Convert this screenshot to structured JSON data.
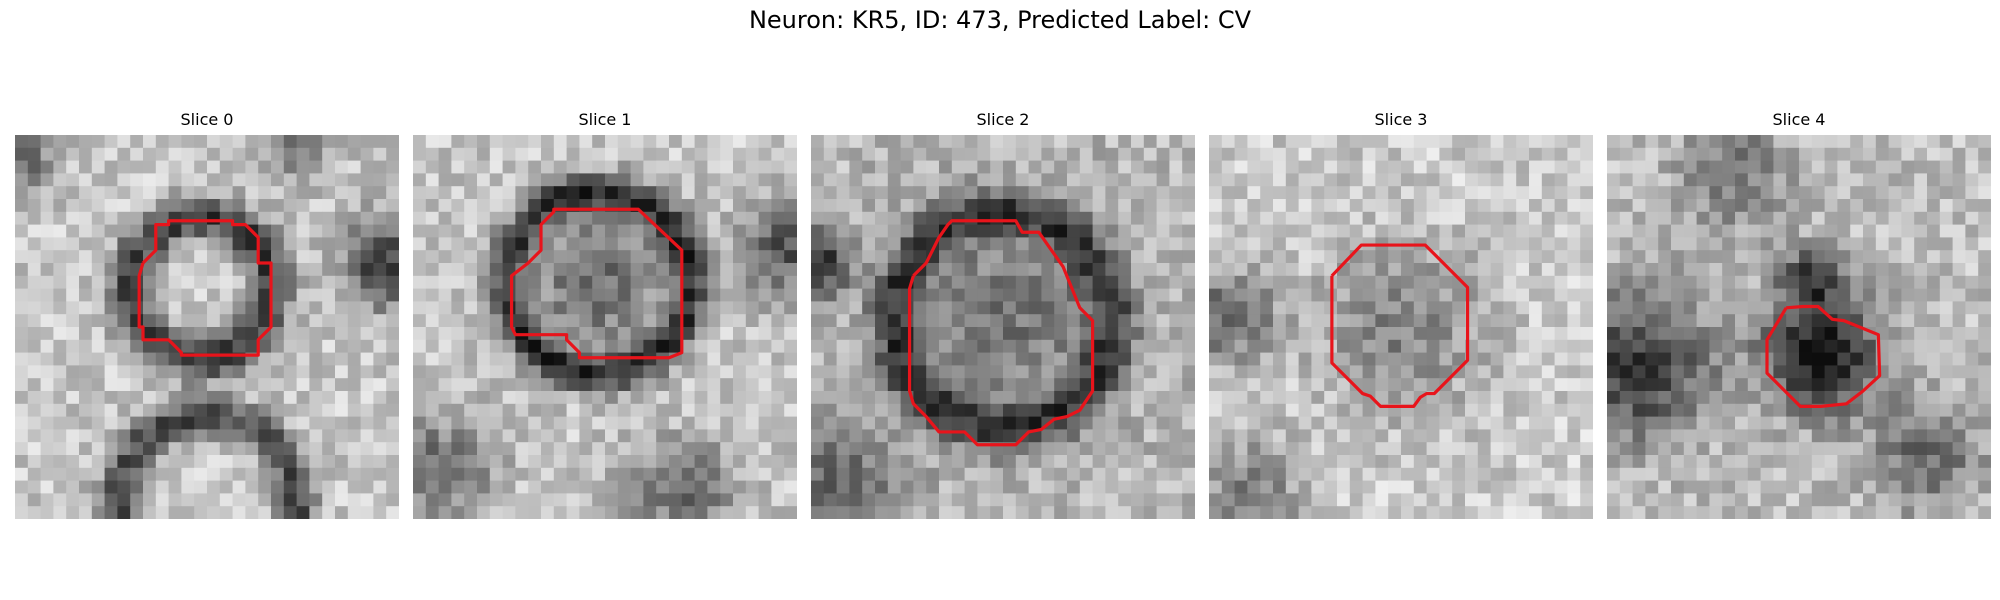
{
  "figure": {
    "title": "Neuron: KR5, ID: 473, Predicted Label: CV",
    "contour_color": "#e8141b"
  },
  "panels": [
    {
      "title": "Slice 0"
    },
    {
      "title": "Slice 1"
    },
    {
      "title": "Slice 2"
    },
    {
      "title": "Slice 3"
    },
    {
      "title": "Slice 4"
    }
  ]
}
